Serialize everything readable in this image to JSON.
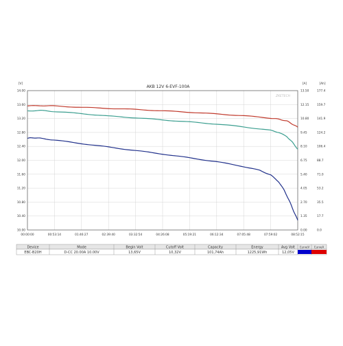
{
  "chart_data": {
    "type": "line",
    "title": "AKB 12V 6-EVF-100A",
    "watermark": "ZKETECH",
    "xlabel": "",
    "left_axis": {
      "unit": "[V]",
      "ylim": [
        10.0,
        14.0
      ],
      "ticks": [
        "14.00",
        "13.60",
        "13.20",
        "12.80",
        "12.40",
        "12.00",
        "11.60",
        "11.20",
        "10.80",
        "10.40",
        "10.00"
      ]
    },
    "right_axis_1": {
      "unit": "[A]",
      "ticks": [
        "13.50",
        "12.15",
        "10.80",
        "9.45",
        "8.10",
        "6.75",
        "5.40",
        "4.05",
        "2.70",
        "1.35",
        "0.00"
      ]
    },
    "right_axis_2": {
      "unit": "[Ah]",
      "ticks": [
        "177.4",
        "159.7",
        "141.9",
        "124.2",
        "106.4",
        "88.7",
        "71.0",
        "53.2",
        "35.5",
        "17.7",
        "0.0"
      ]
    },
    "x_ticks": [
      "00:00:00",
      "00:53:14",
      "01:46:27",
      "02:39:40",
      "03:32:54",
      "04:26:08",
      "05:19:21",
      "06:12:34",
      "07:05:48",
      "07:59:02",
      "08:52:15"
    ],
    "grid": true,
    "series": [
      {
        "color": "#c0392b",
        "x": [
          0,
          0.5,
          1,
          2,
          3,
          4,
          5,
          6,
          7,
          8,
          9,
          9.3,
          9.6,
          9.8,
          10
        ],
        "y": [
          13.56,
          13.57,
          13.56,
          13.52,
          13.49,
          13.46,
          13.42,
          13.38,
          13.33,
          13.28,
          13.21,
          13.18,
          13.13,
          13.04,
          12.95
        ]
      },
      {
        "color": "#3a9e8f",
        "x": [
          0,
          0.5,
          1,
          2,
          3,
          4,
          5,
          6,
          7,
          8,
          9,
          9.3,
          9.6,
          9.8,
          10
        ],
        "y": [
          13.42,
          13.43,
          13.4,
          13.34,
          13.27,
          13.22,
          13.16,
          13.1,
          13.04,
          12.96,
          12.86,
          12.8,
          12.68,
          12.52,
          12.32
        ]
      },
      {
        "color": "#1f2f8a",
        "x": [
          0,
          0.2,
          0.5,
          1,
          2,
          3,
          4,
          5,
          6,
          7,
          8,
          8.6,
          9.0,
          9.3,
          9.5,
          9.7,
          9.85,
          10
        ],
        "y": [
          12.63,
          12.65,
          12.63,
          12.58,
          12.48,
          12.38,
          12.28,
          12.18,
          12.07,
          11.96,
          11.82,
          11.71,
          11.58,
          11.38,
          11.14,
          10.82,
          10.54,
          10.28
        ]
      }
    ]
  },
  "table": {
    "headers": [
      "Device",
      "Mode",
      "Begin Volt",
      "Cutoff Volt",
      "Capacity",
      "Energy",
      "Avg Volt",
      "CurveV",
      "CurveA"
    ],
    "row": [
      "EBC-B20H",
      "D-CC 20.00A 10.00V",
      "13,65V",
      "10,32V",
      "101,74Ah",
      "1225,91Wh",
      "12,05V"
    ],
    "curve_colors": [
      "#0000cc",
      "#dd0000",
      "#0000cc",
      "#dd0000"
    ]
  }
}
